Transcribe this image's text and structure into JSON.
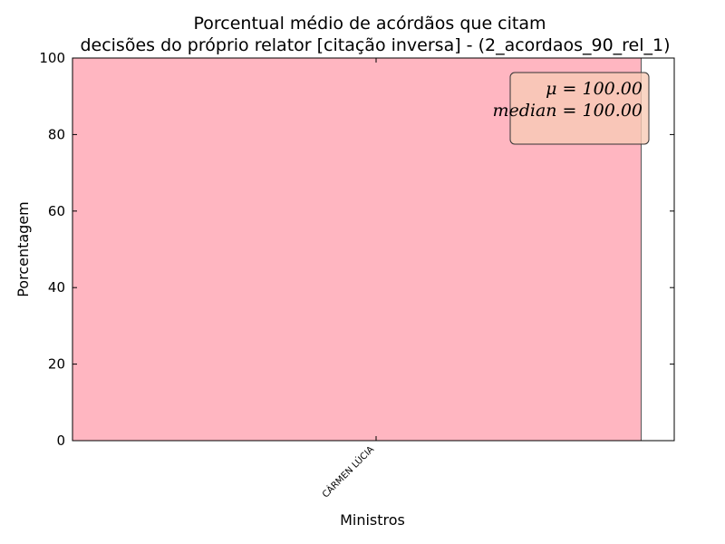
{
  "chart_data": {
    "type": "bar",
    "title_line1": "Porcentual médio de acórdãos que citam",
    "title_line2": "decisões do próprio relator [citação inversa] - (2_acordaos_90_rel_1)",
    "xlabel": "Ministros",
    "ylabel": "Porcentagem",
    "categories": [
      "CÁRMEN LÚCIA"
    ],
    "values": [
      100
    ],
    "ylim": [
      0,
      100
    ],
    "yticks": [
      "0",
      "20",
      "40",
      "60",
      "80",
      "100"
    ],
    "bar_color": "#ffb6c1",
    "stats_box": {
      "mean_text": "μ = 100.00",
      "median_text": "median = 100.00",
      "fill_color": "#f8cbb5",
      "placement": "top-right"
    },
    "grid": false
  }
}
